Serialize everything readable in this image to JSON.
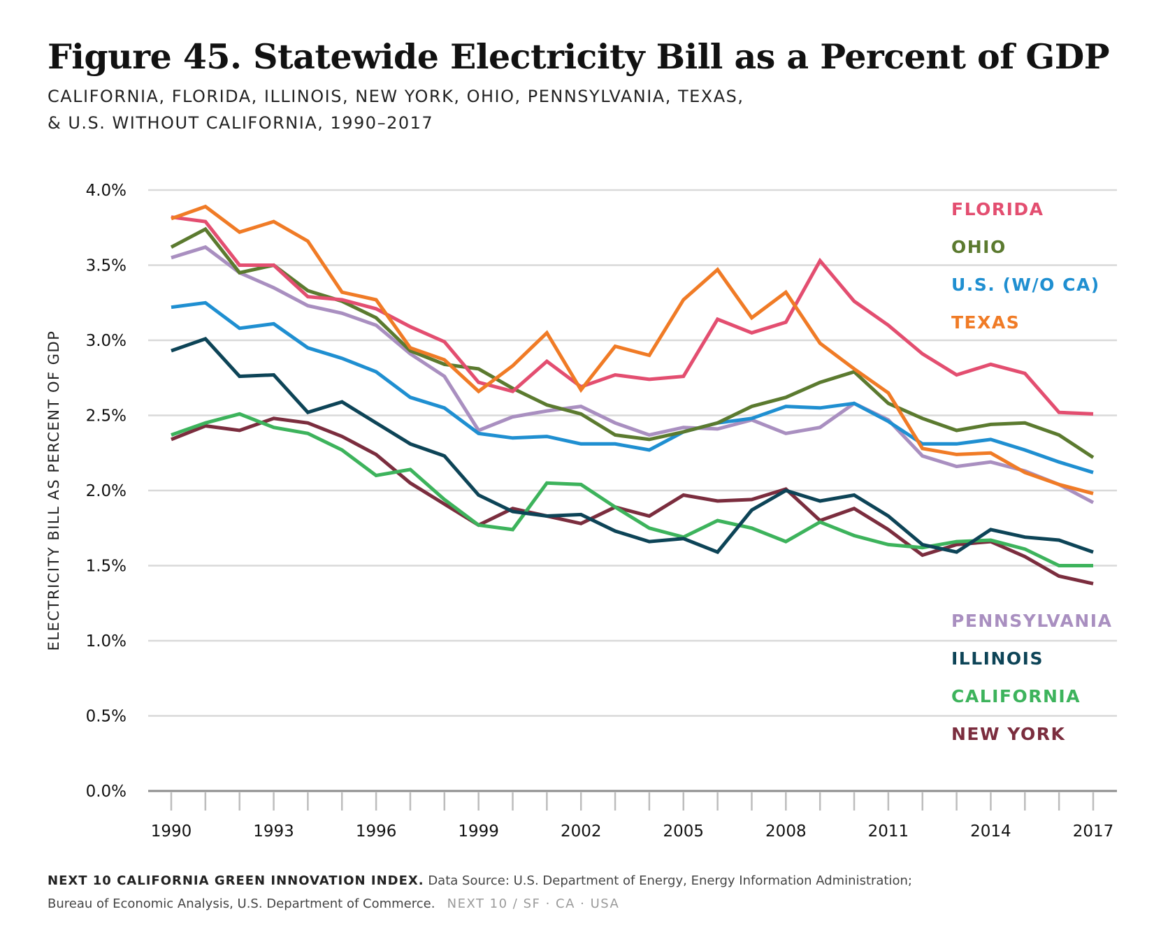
{
  "header": {
    "title": "Figure 45. Statewide Electricity Bill as a Percent of GDP",
    "subtitle_line1": "CALIFORNIA, FLORIDA, ILLINOIS, NEW YORK, OHIO, PENNSYLVANIA, TEXAS,",
    "subtitle_line2": "& U.S. WITHOUT CALIFORNIA, 1990–2017"
  },
  "footer": {
    "source_bold": "NEXT 10 CALIFORNIA GREEN INNOVATION INDEX.",
    "source_text": " Data Source: U.S. Department of Energy, Energy Information Administration;",
    "source_line2": "Bureau of Economic Analysis, U.S. Department of Commerce.",
    "brand": "NEXT 10  /  SF · CA · USA"
  },
  "chart_data": {
    "type": "line",
    "title": "Figure 45. Statewide Electricity Bill as a Percent of GDP",
    "subtitle": "CALIFORNIA, FLORIDA, ILLINOIS, NEW YORK, OHIO, PENNSYLVANIA, TEXAS, & U.S. WITHOUT CALIFORNIA, 1990–2017",
    "xlabel": "",
    "ylabel": "ELECTRICITY BILL AS PERCENT OF GDP",
    "x": [
      1990,
      1991,
      1992,
      1993,
      1994,
      1995,
      1996,
      1997,
      1998,
      1999,
      2000,
      2001,
      2002,
      2003,
      2004,
      2005,
      2006,
      2007,
      2008,
      2009,
      2010,
      2011,
      2012,
      2013,
      2014,
      2015,
      2016,
      2017
    ],
    "xlim": [
      1990,
      2017
    ],
    "x_tick_labels": [
      "1990",
      "1993",
      "1996",
      "1999",
      "2002",
      "2005",
      "2008",
      "2011",
      "2014",
      "2017"
    ],
    "ylim": [
      0,
      4
    ],
    "y_tick_values": [
      0,
      0.5,
      1,
      1.5,
      2,
      2.5,
      3,
      3.5,
      4
    ],
    "y_tick_labels": [
      "0.0%",
      "0.5%",
      "1.0%",
      "1.5%",
      "2.0%",
      "2.5%",
      "3.0%",
      "3.5%",
      "4.0%"
    ],
    "grid": "horizontal",
    "legend_placement": "right",
    "series": [
      {
        "name": "NEW YORK",
        "color": "#7b2d3e",
        "values": [
          2.34,
          2.43,
          2.4,
          2.48,
          2.45,
          2.36,
          2.24,
          2.05,
          1.91,
          1.77,
          1.88,
          1.83,
          1.78,
          1.89,
          1.83,
          1.97,
          1.93,
          1.94,
          2.01,
          1.8,
          1.88,
          1.74,
          1.57,
          1.64,
          1.66,
          1.56,
          1.43,
          1.38
        ]
      },
      {
        "name": "CALIFORNIA",
        "color": "#3db35c",
        "values": [
          2.37,
          2.45,
          2.51,
          2.42,
          2.38,
          2.27,
          2.1,
          2.14,
          1.94,
          1.77,
          1.74,
          2.05,
          2.04,
          1.89,
          1.75,
          1.69,
          1.8,
          1.75,
          1.66,
          1.79,
          1.7,
          1.64,
          1.62,
          1.66,
          1.67,
          1.61,
          1.5,
          1.5
        ]
      },
      {
        "name": "ILLINOIS",
        "color": "#0d4457",
        "values": [
          2.93,
          3.01,
          2.76,
          2.77,
          2.52,
          2.59,
          2.45,
          2.31,
          2.23,
          1.97,
          1.86,
          1.83,
          1.84,
          1.73,
          1.66,
          1.68,
          1.59,
          1.87,
          2.0,
          1.93,
          1.97,
          1.83,
          1.64,
          1.59,
          1.74,
          1.69,
          1.67,
          1.59
        ]
      },
      {
        "name": "PENNSYLVANIA",
        "color": "#a98fc0",
        "values": [
          3.55,
          3.62,
          3.45,
          3.35,
          3.23,
          3.18,
          3.1,
          2.91,
          2.76,
          2.4,
          2.49,
          2.53,
          2.56,
          2.45,
          2.37,
          2.42,
          2.41,
          2.47,
          2.38,
          2.42,
          2.58,
          2.47,
          2.23,
          2.16,
          2.19,
          2.13,
          2.04,
          1.92
        ]
      },
      {
        "name": "U.S. (W/O CA)",
        "color": "#1f8fd1",
        "values": [
          3.22,
          3.25,
          3.08,
          3.11,
          2.95,
          2.88,
          2.79,
          2.62,
          2.55,
          2.38,
          2.35,
          2.36,
          2.31,
          2.31,
          2.27,
          2.39,
          2.45,
          2.48,
          2.56,
          2.55,
          2.58,
          2.46,
          2.31,
          2.31,
          2.34,
          2.27,
          2.19,
          2.12
        ]
      },
      {
        "name": "OHIO",
        "color": "#5b7a2f",
        "values": [
          3.62,
          3.74,
          3.45,
          3.5,
          3.33,
          3.26,
          3.15,
          2.93,
          2.84,
          2.81,
          2.68,
          2.57,
          2.51,
          2.37,
          2.34,
          2.39,
          2.45,
          2.56,
          2.62,
          2.72,
          2.79,
          2.58,
          2.48,
          2.4,
          2.44,
          2.45,
          2.37,
          2.22
        ]
      },
      {
        "name": "FLORIDA",
        "color": "#e34e70",
        "values": [
          3.82,
          3.79,
          3.5,
          3.5,
          3.29,
          3.27,
          3.21,
          3.09,
          2.99,
          2.72,
          2.66,
          2.86,
          2.69,
          2.77,
          2.74,
          2.76,
          3.14,
          3.05,
          3.12,
          3.53,
          3.26,
          3.1,
          2.91,
          2.77,
          2.84,
          2.78,
          2.52,
          2.51
        ]
      },
      {
        "name": "TEXAS",
        "color": "#f07b26",
        "values": [
          3.81,
          3.89,
          3.72,
          3.79,
          3.66,
          3.32,
          3.27,
          2.95,
          2.87,
          2.66,
          2.83,
          3.05,
          2.67,
          2.96,
          2.9,
          3.27,
          3.47,
          3.15,
          3.32,
          2.98,
          2.81,
          2.65,
          2.28,
          2.24,
          2.25,
          2.12,
          2.04,
          1.98
        ]
      }
    ],
    "legend_top": [
      "FLORIDA",
      "OHIO",
      "U.S. (W/O CA)",
      "TEXAS"
    ],
    "legend_bottom": [
      "PENNSYLVANIA",
      "ILLINOIS",
      "CALIFORNIA",
      "NEW YORK"
    ]
  }
}
